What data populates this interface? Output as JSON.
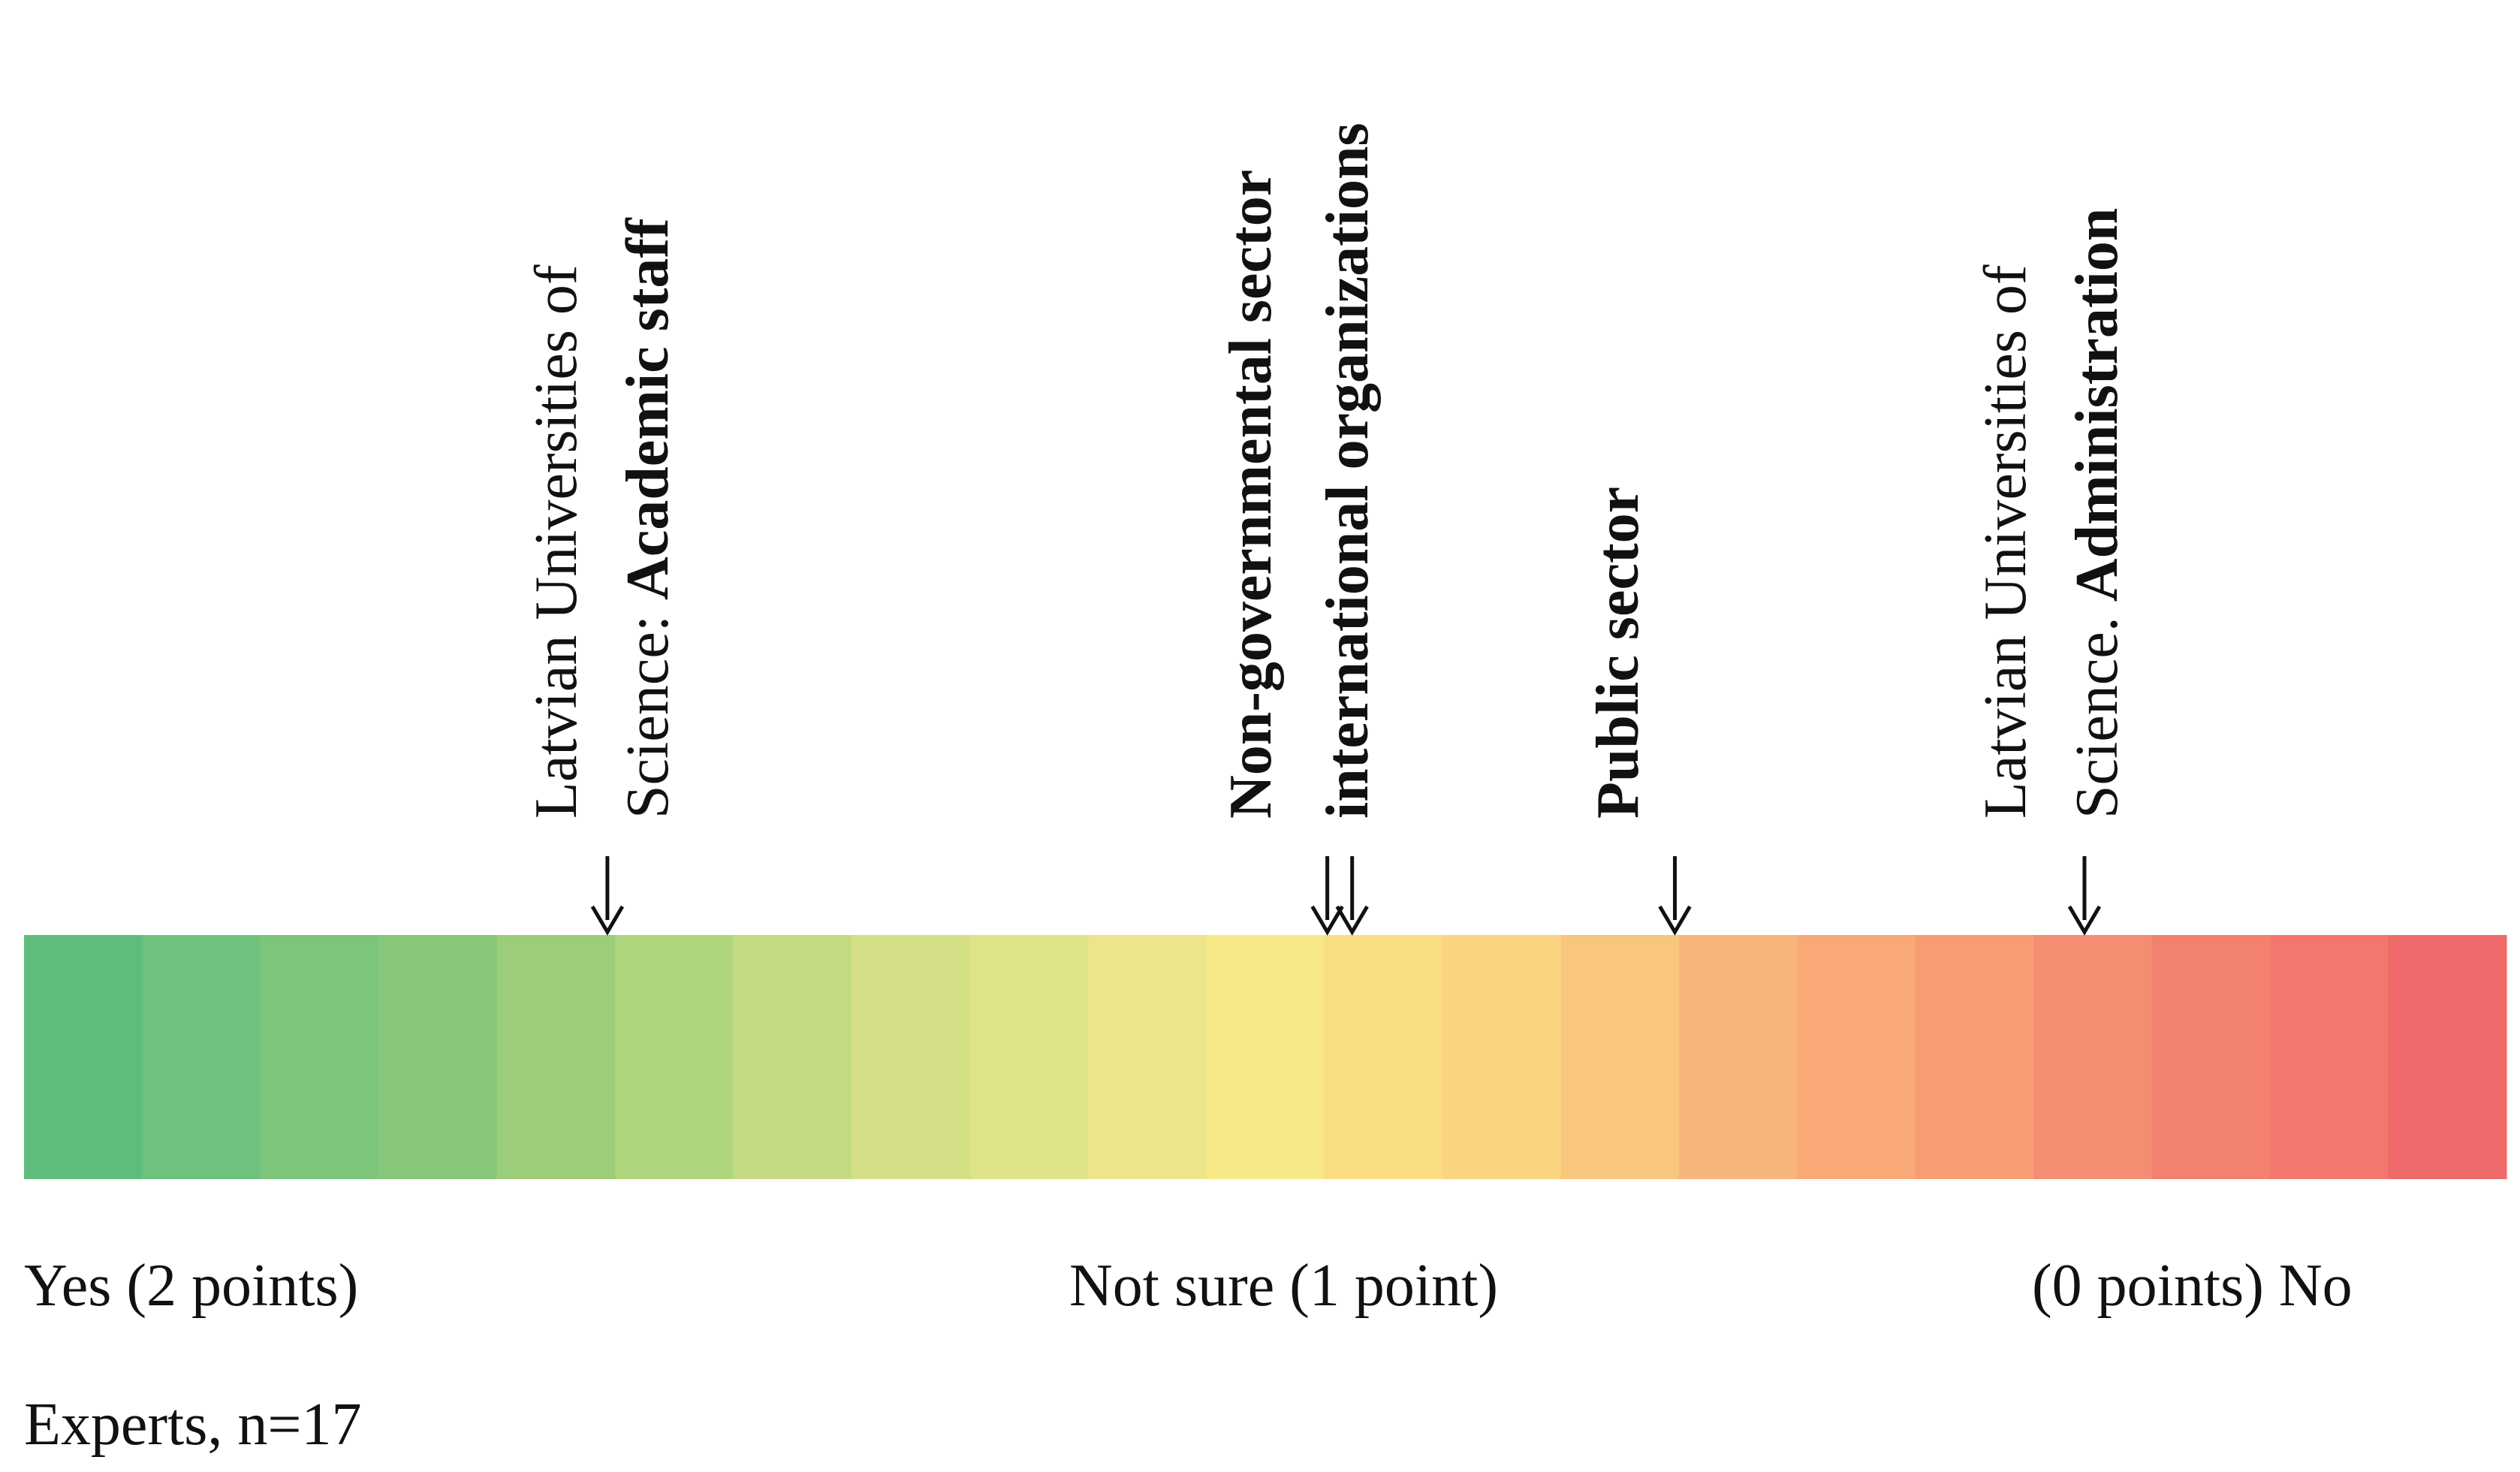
{
  "scale": {
    "segment_colors": [
      "#5ebd7c",
      "#6fc27d",
      "#7cc57b",
      "#87c77a",
      "#9ccd7a",
      "#b0d67d",
      "#c3da80",
      "#d4de84",
      "#dfe387",
      "#ece58b",
      "#f8e987",
      "#fadd83",
      "#fad581",
      "#f8c67c",
      "#f7b57a",
      "#f8a976",
      "#f89c74",
      "#f48e72",
      "#f2816f",
      "#f2776d",
      "#ef6a6a"
    ],
    "labels": {
      "yes": "Yes (2 points)",
      "not_sure": "Not sure (1 point)",
      "no": "(0 points) No"
    },
    "note": "Experts, n=17"
  },
  "groups": [
    {
      "position": 1.53,
      "lines": [
        {
          "normal": "Latvian Universities of",
          "bold": ""
        },
        {
          "normal": "Science: ",
          "bold": "Academic staff"
        }
      ]
    },
    {
      "position": 0.95,
      "lines": [
        {
          "normal": "",
          "bold": "Non-governmental sector"
        }
      ]
    },
    {
      "position": 0.93,
      "lines": [
        {
          "normal": "",
          "bold": "international organizations"
        }
      ]
    },
    {
      "position": 0.67,
      "lines": [
        {
          "normal": "",
          "bold": "Public sector"
        }
      ]
    },
    {
      "position": 0.34,
      "lines": [
        {
          "normal": "Latvian Universities of",
          "bold": ""
        },
        {
          "normal": "Science. ",
          "bold": "Administration"
        }
      ]
    }
  ]
}
